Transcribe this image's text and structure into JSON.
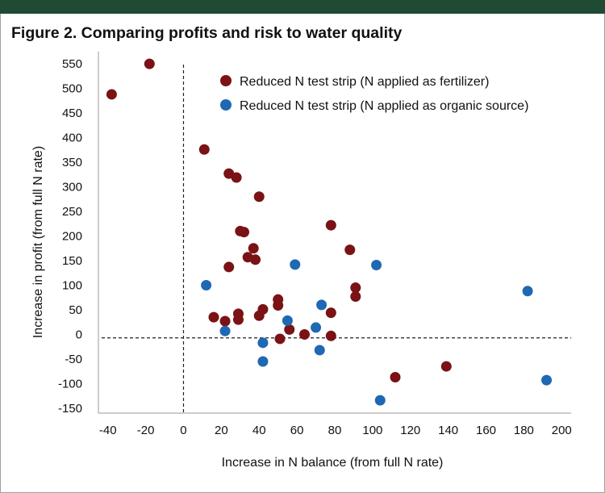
{
  "figure": {
    "title": "Figure 2. Comparing profits and risk to water quality"
  },
  "colors": {
    "fertilizer": "#7a1216",
    "organic": "#1f68b3",
    "header_bar": "#1f4a33",
    "reference_line": "#222222"
  },
  "chart_data": {
    "type": "scatter",
    "title": "",
    "xlabel": "Increase in N balance (from full N rate)",
    "ylabel": "Increase in profit (from full N rate)",
    "xlim": [
      -45,
      205
    ],
    "ylim": [
      -160,
      565
    ],
    "x_ticks": [
      -40,
      -20,
      0,
      20,
      40,
      60,
      80,
      100,
      120,
      140,
      160,
      180,
      200
    ],
    "y_ticks": [
      550,
      500,
      450,
      400,
      350,
      300,
      250,
      200,
      150,
      100,
      50,
      0,
      -50,
      -100,
      -150
    ],
    "reference_lines": {
      "x": 0,
      "y": -7
    },
    "grid": false,
    "legend_position": "top-right",
    "series": [
      {
        "name": "Reduced N test strip (N applied as fertilizer)",
        "points": [
          [
            -38,
            488
          ],
          [
            -18,
            550
          ],
          [
            11,
            376
          ],
          [
            24,
            327
          ],
          [
            28,
            319
          ],
          [
            40,
            280
          ],
          [
            30,
            210
          ],
          [
            32,
            208
          ],
          [
            37,
            175
          ],
          [
            38,
            152
          ],
          [
            34,
            157
          ],
          [
            24,
            137
          ],
          [
            78,
            222
          ],
          [
            88,
            172
          ],
          [
            91,
            95
          ],
          [
            91,
            77
          ],
          [
            50,
            71
          ],
          [
            50,
            59
          ],
          [
            42,
            51
          ],
          [
            40,
            38
          ],
          [
            29,
            42
          ],
          [
            29,
            30
          ],
          [
            22,
            27
          ],
          [
            16,
            35
          ],
          [
            78,
            44
          ],
          [
            56,
            10
          ],
          [
            64,
            0
          ],
          [
            78,
            -3
          ],
          [
            51,
            -9
          ],
          [
            112,
            -87
          ],
          [
            139,
            -65
          ]
        ]
      },
      {
        "name": "Reduced N test strip (N applied as organic source)",
        "points": [
          [
            12,
            100
          ],
          [
            22,
            7
          ],
          [
            42,
            -17
          ],
          [
            42,
            -55
          ],
          [
            59,
            142
          ],
          [
            55,
            28
          ],
          [
            73,
            60
          ],
          [
            70,
            14
          ],
          [
            72,
            -32
          ],
          [
            102,
            141
          ],
          [
            104,
            -134
          ],
          [
            182,
            88
          ],
          [
            192,
            -93
          ]
        ]
      }
    ]
  }
}
